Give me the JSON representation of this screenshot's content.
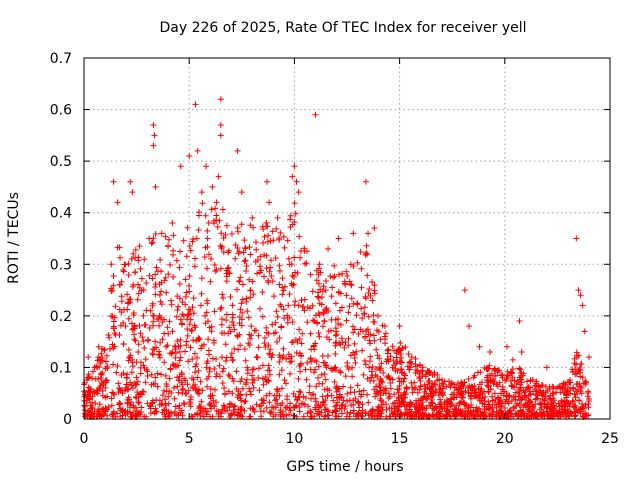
{
  "chart_data": {
    "type": "scatter",
    "title": "Day 226 of 2025, Rate Of TEC Index for receiver yell",
    "xlabel": "GPS time / hours",
    "ylabel": "ROTI / TECUs",
    "xlim": [
      0,
      25
    ],
    "ylim": [
      0,
      0.7
    ],
    "xticks": [
      0,
      5,
      10,
      15,
      20,
      25
    ],
    "yticks": [
      0,
      0.1,
      0.2,
      0.3,
      0.4,
      0.5,
      0.6,
      0.7
    ],
    "xtick_labels": [
      "0",
      "5",
      "10",
      "15",
      "20",
      "25"
    ],
    "ytick_labels": [
      "0",
      "0.1",
      "0.2",
      "0.3",
      "0.4",
      "0.5",
      "0.6",
      "0.7"
    ],
    "grid": true,
    "marker": "+",
    "color": "#ff0000",
    "series": [
      {
        "name": "ROTI",
        "points": [
          [
            0.2,
            0.12
          ],
          [
            0.5,
            0.1
          ],
          [
            0.7,
            0.14
          ],
          [
            1.3,
            0.3
          ],
          [
            1.4,
            0.46
          ],
          [
            1.6,
            0.42
          ],
          [
            2.2,
            0.46
          ],
          [
            2.3,
            0.44
          ],
          [
            3.1,
            0.35
          ],
          [
            3.3,
            0.57
          ],
          [
            3.35,
            0.55
          ],
          [
            3.3,
            0.53
          ],
          [
            3.4,
            0.45
          ],
          [
            3.7,
            0.36
          ],
          [
            4.2,
            0.38
          ],
          [
            4.6,
            0.49
          ],
          [
            5.0,
            0.51
          ],
          [
            5.3,
            0.61
          ],
          [
            5.4,
            0.52
          ],
          [
            5.6,
            0.44
          ],
          [
            5.8,
            0.49
          ],
          [
            6.1,
            0.45
          ],
          [
            6.3,
            0.42
          ],
          [
            6.5,
            0.57
          ],
          [
            6.5,
            0.55
          ],
          [
            6.5,
            0.62
          ],
          [
            6.4,
            0.47
          ],
          [
            7.3,
            0.52
          ],
          [
            7.5,
            0.44
          ],
          [
            8.0,
            0.39
          ],
          [
            8.7,
            0.46
          ],
          [
            8.8,
            0.42
          ],
          [
            9.2,
            0.39
          ],
          [
            9.9,
            0.47
          ],
          [
            10.0,
            0.49
          ],
          [
            10.1,
            0.46
          ],
          [
            10.2,
            0.44
          ],
          [
            11.0,
            0.59
          ],
          [
            11.2,
            0.3
          ],
          [
            11.6,
            0.33
          ],
          [
            12.1,
            0.35
          ],
          [
            12.8,
            0.36
          ],
          [
            13.4,
            0.46
          ],
          [
            13.5,
            0.36
          ],
          [
            13.8,
            0.37
          ],
          [
            14.3,
            0.18
          ],
          [
            15.0,
            0.18
          ],
          [
            15.5,
            0.1
          ],
          [
            16.1,
            0.1
          ],
          [
            17.0,
            0.05
          ],
          [
            18.1,
            0.25
          ],
          [
            18.3,
            0.18
          ],
          [
            18.8,
            0.14
          ],
          [
            19.3,
            0.13
          ],
          [
            20.1,
            0.14
          ],
          [
            20.7,
            0.19
          ],
          [
            20.8,
            0.13
          ],
          [
            22.0,
            0.1
          ],
          [
            23.4,
            0.35
          ],
          [
            23.5,
            0.25
          ],
          [
            23.6,
            0.24
          ],
          [
            23.7,
            0.22
          ],
          [
            23.8,
            0.17
          ],
          [
            24.0,
            0.12
          ]
        ]
      }
    ],
    "envelope": {
      "description": "hourly upper envelope (data units) of the dense scatter cloud",
      "hours": [
        0,
        0.5,
        1,
        1.5,
        2,
        2.5,
        3,
        3.5,
        4,
        4.5,
        5,
        5.5,
        6,
        6.5,
        7,
        7.5,
        8,
        8.5,
        9,
        9.5,
        10,
        10.5,
        11,
        11.5,
        12,
        12.5,
        13,
        13.5,
        14,
        14.5,
        15,
        15.5,
        16,
        16.5,
        17,
        17.5,
        18,
        18.5,
        19,
        19.5,
        20,
        20.5,
        21,
        21.5,
        22,
        22.5,
        23,
        23.5,
        24
      ],
      "upper": [
        0.07,
        0.1,
        0.16,
        0.36,
        0.3,
        0.34,
        0.32,
        0.38,
        0.36,
        0.37,
        0.4,
        0.42,
        0.4,
        0.43,
        0.36,
        0.38,
        0.37,
        0.4,
        0.4,
        0.36,
        0.42,
        0.33,
        0.3,
        0.28,
        0.3,
        0.3,
        0.32,
        0.34,
        0.22,
        0.15,
        0.15,
        0.13,
        0.1,
        0.09,
        0.08,
        0.07,
        0.07,
        0.08,
        0.1,
        0.1,
        0.08,
        0.12,
        0.08,
        0.07,
        0.06,
        0.06,
        0.07,
        0.14,
        0.05
      ]
    }
  }
}
